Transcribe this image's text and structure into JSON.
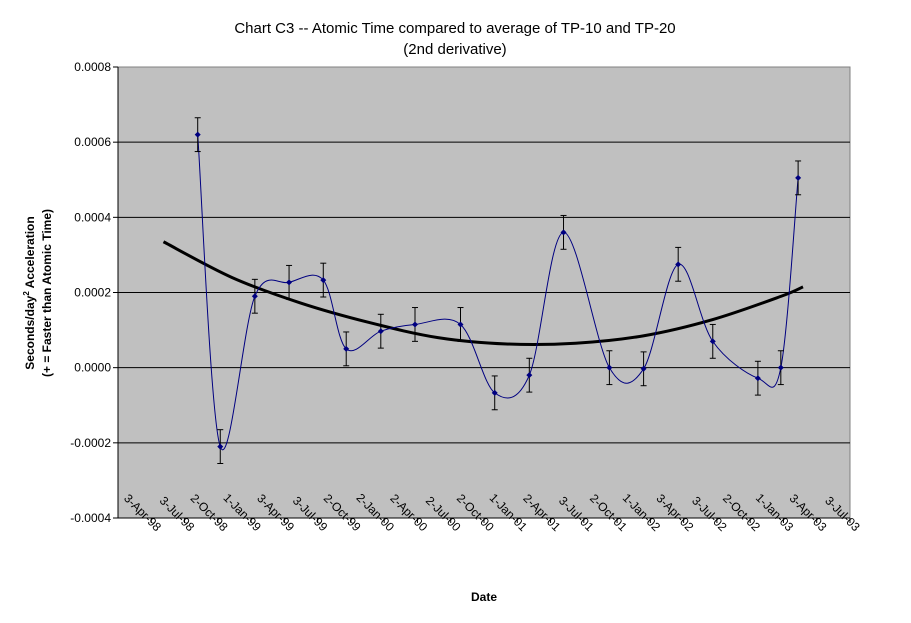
{
  "chart_data": {
    "type": "scatter",
    "title": "Chart C3 -- Atomic Time compared to average of TP-10 and TP-20",
    "subtitle": "(2nd derivative)",
    "xlabel": "Date",
    "ylabel": {
      "line1_pre": "Seconds/day",
      "line1_sup": "2",
      "line1_post": " Acceleration",
      "line2": "(+ = Faster than Atomic Time)"
    },
    "ylim": [
      -0.0004,
      0.0008
    ],
    "yticks": [
      "0.0008",
      "0.0006",
      "0.0004",
      "0.0002",
      "0.0000",
      "-0.0002",
      "-0.0004"
    ],
    "ytick_values": [
      0.0008,
      0.0006,
      0.0004,
      0.0002,
      0.0,
      -0.0002,
      -0.0004
    ],
    "xticks": [
      "3-Apr-98",
      "3-Jul-98",
      "2-Oct-98",
      "1-Jan-99",
      "3-Apr-99",
      "3-Jul-99",
      "2-Oct-99",
      "2-Jan-00",
      "2-Apr-00",
      "2-Jul-00",
      "2-Oct-00",
      "1-Jan-01",
      "2-Apr-01",
      "3-Jul-01",
      "2-Oct-01",
      "1-Jan-02",
      "3-Apr-02",
      "3-Jul-02",
      "2-Oct-02",
      "1-Jan-03",
      "3-Apr-03",
      "3-Jul-03"
    ],
    "xlim": [
      "1998-03-04",
      "2003-07-03"
    ],
    "grid": true,
    "plot_background": "#c0c0c0",
    "series": [
      {
        "type": "scatter-smooth-with-error-bars",
        "color": "#000080",
        "marker": "diamond",
        "points": [
          {
            "x": "1998-10-02",
            "y": 0.00062,
            "err": 4.5e-05
          },
          {
            "x": "1998-12-01",
            "y": -0.00021,
            "err": 4.5e-05
          },
          {
            "x": "1999-03-03",
            "y": 0.00019,
            "err": 4.5e-05
          },
          {
            "x": "1999-06-02",
            "y": 0.000227,
            "err": 4.5e-05
          },
          {
            "x": "1999-09-01",
            "y": 0.000233,
            "err": 4.5e-05
          },
          {
            "x": "1999-11-01",
            "y": 5e-05,
            "err": 4.5e-05
          },
          {
            "x": "2000-02-01",
            "y": 9.7e-05,
            "err": 4.5e-05
          },
          {
            "x": "2000-05-02",
            "y": 0.000115,
            "err": 4.5e-05
          },
          {
            "x": "2000-08-31",
            "y": 0.000115,
            "err": 4.5e-05
          },
          {
            "x": "2000-11-30",
            "y": -6.7e-05,
            "err": 4.5e-05
          },
          {
            "x": "2001-03-02",
            "y": -2e-05,
            "err": 4.5e-05
          },
          {
            "x": "2001-06-01",
            "y": 0.00036,
            "err": 4.5e-05
          },
          {
            "x": "2001-10-01",
            "y": 0.0,
            "err": 4.5e-05
          },
          {
            "x": "2001-12-31",
            "y": -3e-06,
            "err": 4.5e-05
          },
          {
            "x": "2002-04-02",
            "y": 0.000275,
            "err": 4.5e-05
          },
          {
            "x": "2002-07-03",
            "y": 7e-05,
            "err": 4.5e-05
          },
          {
            "x": "2002-10-31",
            "y": -2.8e-05,
            "err": 4.5e-05
          },
          {
            "x": "2002-12-31",
            "y": 0.0,
            "err": 4.5e-05
          },
          {
            "x": "2003-02-15",
            "y": 0.000505,
            "err": 4.5e-05
          }
        ]
      },
      {
        "type": "trend",
        "color": "#000000",
        "points": [
          {
            "x": "1998-07-03",
            "y": 0.000335
          },
          {
            "x": "1999-01-01",
            "y": 0.00024
          },
          {
            "x": "1999-07-03",
            "y": 0.000172
          },
          {
            "x": "2000-01-02",
            "y": 0.00012
          },
          {
            "x": "2000-07-02",
            "y": 8e-05
          },
          {
            "x": "2001-01-01",
            "y": 6.3e-05
          },
          {
            "x": "2001-07-03",
            "y": 6.5e-05
          },
          {
            "x": "2002-01-01",
            "y": 8.5e-05
          },
          {
            "x": "2002-07-03",
            "y": 0.000128
          },
          {
            "x": "2003-01-01",
            "y": 0.00019
          },
          {
            "x": "2003-02-28",
            "y": 0.000215
          }
        ]
      }
    ]
  }
}
